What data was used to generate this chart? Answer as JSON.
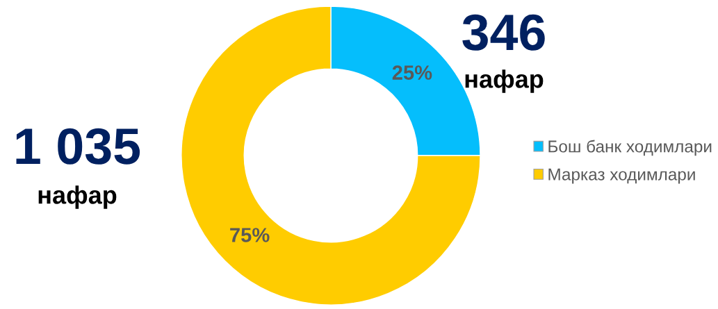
{
  "chart_data": {
    "type": "donut",
    "categories": [
      "Бош банк ходимлари",
      "Марказ ходимлари"
    ],
    "values": [
      25,
      75
    ],
    "colors": [
      "#05befc",
      "#ffcc00"
    ],
    "value_labels": [
      "25%",
      "75%"
    ],
    "annotations": [
      "346",
      "нафар",
      "1 035",
      "нафар"
    ],
    "legend": "right"
  }
}
